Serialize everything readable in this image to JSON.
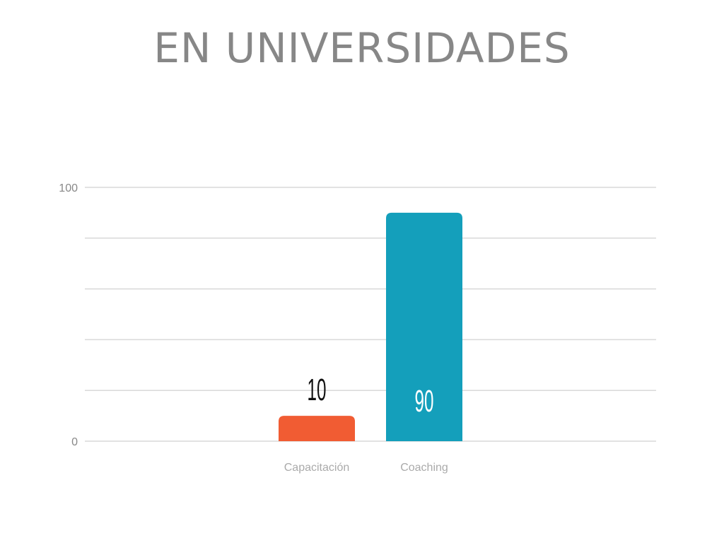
{
  "chart_data": {
    "type": "bar",
    "title": "EN UNIVERSIDADES",
    "categories": [
      "Capacitación",
      "Coaching"
    ],
    "values": [
      10,
      90
    ],
    "data_labels": [
      "10",
      "90"
    ],
    "colors": [
      "#f15c33",
      "#149fbb"
    ],
    "ylim": [
      0,
      100
    ],
    "yticks": [
      0,
      20,
      40,
      60,
      80,
      100
    ],
    "ytick_labels": [
      "0",
      "100"
    ],
    "grid": true,
    "xlabel": "",
    "ylabel": ""
  }
}
